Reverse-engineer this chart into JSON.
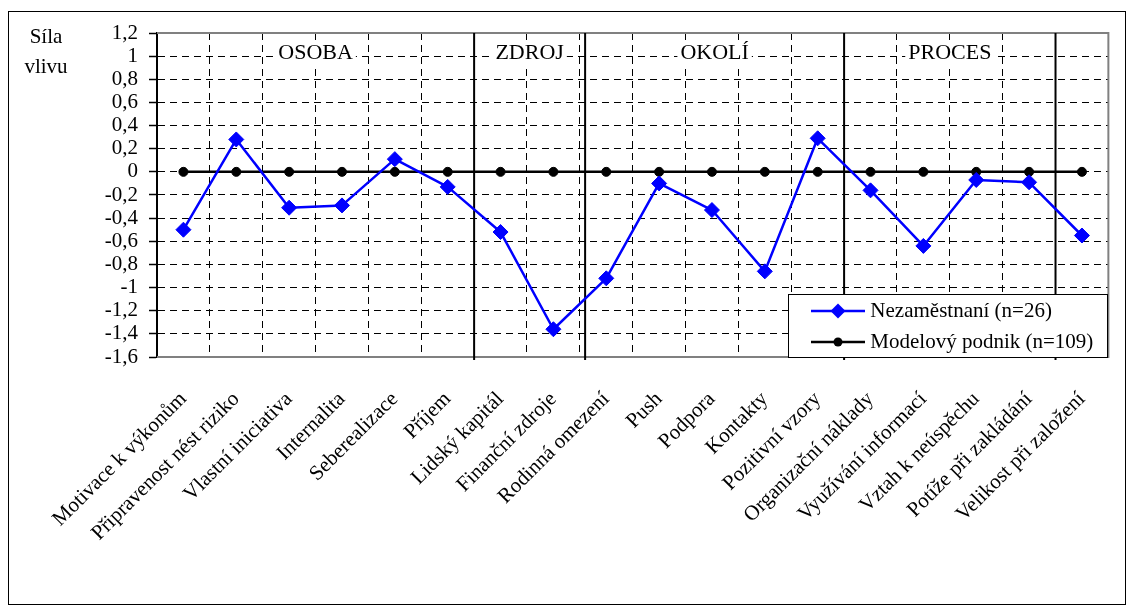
{
  "chart_data": {
    "type": "line",
    "ylabel": "Síla vlivu",
    "categories": [
      "Motivace k výkonům",
      "Připravenost nést riziko",
      "Vlastní iniciativa",
      "Internalita",
      "Seberealizace",
      "Příjem",
      "Lidský kapitál",
      "Finanční zdroje",
      "Rodinná omezení",
      "Push",
      "Podpora",
      "Kontakty",
      "Pozitivní vzory",
      "Organizační náklady",
      "Využívání informací",
      "Vztah k neúspěchu",
      "Potíže při zakládání",
      "Velikost při založení"
    ],
    "series": [
      {
        "name": "Nezaměstnaní (n=26)",
        "color": "#0000ff",
        "marker": "diamond",
        "values": [
          -0.5,
          0.28,
          -0.31,
          -0.29,
          0.11,
          -0.13,
          -0.52,
          -1.36,
          -0.92,
          -0.1,
          -0.33,
          -0.86,
          0.29,
          -0.16,
          -0.64,
          -0.07,
          -0.09,
          -0.55
        ]
      },
      {
        "name": "Modelový podnik (n=109)",
        "color": "#000000",
        "marker": "circle",
        "values": [
          0,
          0,
          0,
          0,
          0,
          0,
          0,
          0,
          0,
          0,
          0,
          0,
          0,
          0,
          0,
          0,
          0,
          0
        ]
      }
    ],
    "ylim": [
      -1.6,
      1.2
    ],
    "yticks": [
      {
        "value": -1.6,
        "label": "-1,6"
      },
      {
        "value": -1.4,
        "label": "-1,4"
      },
      {
        "value": -1.2,
        "label": "-1,2"
      },
      -1,
      {
        "value": -0.8,
        "label": "-0,8"
      },
      {
        "value": -0.6,
        "label": "-0,6"
      },
      {
        "value": -0.4,
        "label": "-0,4"
      },
      {
        "value": -0.2,
        "label": "-0,2"
      },
      0,
      {
        "value": 0.2,
        "label": "0,2"
      },
      {
        "value": 0.4,
        "label": "0,4"
      },
      {
        "value": 0.6,
        "label": "0,6"
      },
      {
        "value": 0.8,
        "label": "0,8"
      },
      1,
      {
        "value": 1.2,
        "label": "1,2"
      }
    ],
    "annotations": [
      "OSOBA",
      "ZDROJ",
      "OKOLÍ",
      "PROCES"
    ],
    "grid": true,
    "legend": "bottom right"
  }
}
